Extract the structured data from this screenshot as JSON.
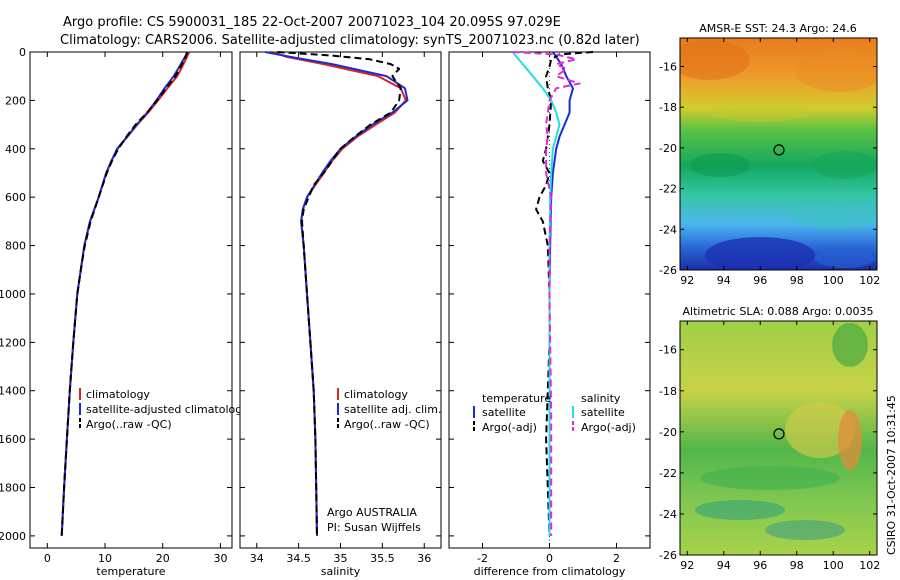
{
  "header": {
    "line1": "Argo profile: CS 5900031_185 22-Oct-2007 20071023_104 20.095S 97.029E",
    "line2": "Climatology: CARS2006. Satellite-adjusted climatology: synTS_20071023.nc (0.82d later)"
  },
  "credit": "CSIRO 31-Oct-2007 10:31:45",
  "colors": {
    "climatology": "#dd2222",
    "satellite": "#1a2bd6",
    "argo": "#000000",
    "salinity_satellite": "#22dde6",
    "salinity_argo": "#e22ad8"
  },
  "chart_data": [
    {
      "type": "line",
      "xlabel": "temperature",
      "ylabel": "",
      "xlim": [
        -3,
        32
      ],
      "ylim": [
        2050,
        0
      ],
      "xticks": [
        "0",
        "10",
        "20",
        "30"
      ],
      "yticks": [
        "0",
        "200",
        "400",
        "600",
        "800",
        "1000",
        "1200",
        "1400",
        "1600",
        "1800",
        "2000"
      ],
      "legend": {
        "placement": "lower-middle",
        "entries": [
          "climatology",
          "satellite-adjusted climatology",
          "Argo(..raw -QC)"
        ]
      },
      "series": [
        {
          "name": "climatology",
          "depth": [
            0,
            30,
            60,
            100,
            150,
            200,
            250,
            300,
            350,
            400,
            450,
            500,
            600,
            700,
            800,
            900,
            1000,
            1200,
            1400,
            1600,
            1800,
            2000
          ],
          "values": [
            24.6,
            24.0,
            23.4,
            22.5,
            20.8,
            19.2,
            17.5,
            15.6,
            13.9,
            12.2,
            11.1,
            10.2,
            8.9,
            7.4,
            6.4,
            5.8,
            5.2,
            4.5,
            3.9,
            3.4,
            2.9,
            2.5
          ]
        },
        {
          "name": "satellite-adjusted climatology",
          "depth": [
            0,
            30,
            60,
            100,
            150,
            200,
            250,
            300,
            350,
            400,
            450,
            500,
            600,
            700,
            800,
            900,
            1000,
            1200,
            1400,
            1600,
            1800,
            2000
          ],
          "values": [
            24.4,
            23.6,
            22.9,
            21.9,
            20.3,
            18.9,
            17.3,
            15.5,
            13.8,
            12.1,
            11.1,
            10.2,
            8.9,
            7.4,
            6.4,
            5.8,
            5.2,
            4.5,
            3.9,
            3.4,
            2.9,
            2.5
          ]
        },
        {
          "name": "Argo(..raw -QC)",
          "depth": [
            0,
            30,
            60,
            100,
            150,
            200,
            250,
            300,
            350,
            400,
            450,
            500,
            600,
            700,
            800,
            900,
            1000,
            1200,
            1400,
            1600,
            1800,
            2000
          ],
          "values": [
            24.2,
            23.8,
            23.1,
            22.2,
            20.6,
            19.0,
            17.3,
            15.3,
            13.7,
            12.3,
            11.2,
            10.3,
            8.9,
            7.5,
            6.5,
            5.8,
            5.2,
            4.5,
            3.9,
            3.4,
            2.9,
            2.5
          ]
        }
      ]
    },
    {
      "type": "line",
      "xlabel": "salinity",
      "ylabel": "",
      "xlim": [
        33.8,
        36.2
      ],
      "ylim": [
        2050,
        0
      ],
      "xticks": [
        "34",
        "34.5",
        "35",
        "35.5",
        "36"
      ],
      "legend": {
        "placement": "lower-middle",
        "entries": [
          "climatology",
          "satellite adj. clim.",
          "Argo(..raw -QC)"
        ]
      },
      "annotation": [
        "Argo AUSTRALIA",
        "PI: Susan Wijffels"
      ],
      "series": [
        {
          "name": "climatology",
          "depth": [
            0,
            20,
            50,
            100,
            150,
            200,
            250,
            300,
            350,
            400,
            450,
            500,
            550,
            600,
            650,
            700,
            800,
            1000,
            1200,
            1400,
            1600,
            1800,
            2000
          ],
          "values": [
            34.2,
            34.35,
            34.8,
            35.45,
            35.72,
            35.78,
            35.65,
            35.42,
            35.2,
            35.02,
            34.9,
            34.8,
            34.7,
            34.6,
            34.55,
            34.53,
            34.56,
            34.6,
            34.64,
            34.68,
            34.7,
            34.71,
            34.72
          ]
        },
        {
          "name": "satellite adj. clim.",
          "depth": [
            0,
            20,
            50,
            100,
            150,
            200,
            250,
            300,
            350,
            400,
            450,
            500,
            550,
            600,
            650,
            700,
            800,
            1000,
            1200,
            1400,
            1600,
            1800,
            2000
          ],
          "values": [
            34.1,
            34.4,
            34.9,
            35.55,
            35.77,
            35.8,
            35.62,
            35.38,
            35.18,
            35.0,
            34.88,
            34.78,
            34.69,
            34.6,
            34.55,
            34.53,
            34.56,
            34.6,
            34.64,
            34.68,
            34.7,
            34.71,
            34.72
          ]
        },
        {
          "name": "Argo(..raw -QC)",
          "depth": [
            0,
            15,
            30,
            50,
            70,
            100,
            150,
            200,
            250,
            300,
            350,
            400,
            450,
            500,
            550,
            600,
            650,
            700,
            800,
            1000,
            1200,
            1400,
            1600,
            1800,
            2000
          ],
          "values": [
            34.25,
            34.9,
            35.35,
            35.6,
            35.7,
            35.62,
            35.72,
            35.7,
            35.6,
            35.36,
            35.17,
            35.0,
            34.9,
            34.8,
            34.68,
            34.62,
            34.56,
            34.54,
            34.56,
            34.6,
            34.64,
            34.68,
            34.7,
            34.71,
            34.72
          ]
        }
      ]
    },
    {
      "type": "line",
      "xlabel": "difference from climatology",
      "ylabel": "",
      "xlim": [
        -3,
        3
      ],
      "ylim": [
        2050,
        0
      ],
      "xticks": [
        "-2",
        "0",
        "2"
      ],
      "legend": {
        "placement": "lower-middle",
        "groups": [
          {
            "title": "temperature",
            "entries": [
              "satellite",
              "Argo(-adj)"
            ]
          },
          {
            "title": "salinity",
            "entries": [
              "satellite",
              "Argo(-adj)"
            ]
          }
        ]
      },
      "series": [
        {
          "name": "temperature satellite",
          "depth": [
            0,
            50,
            100,
            150,
            200,
            250,
            300,
            350,
            400,
            500,
            600,
            800,
            1000,
            1500,
            2000
          ],
          "values": [
            0.1,
            0.35,
            0.5,
            0.7,
            0.6,
            0.6,
            0.45,
            0.3,
            0.2,
            0.1,
            0.05,
            0.02,
            0.0,
            0.0,
            0.0
          ]
        },
        {
          "name": "temperature Argo(-adj)",
          "depth": [
            0,
            10,
            30,
            60,
            100,
            150,
            200,
            300,
            400,
            450,
            500,
            550,
            600,
            650,
            700,
            800,
            1000,
            1200,
            1400,
            1600,
            1800,
            2000
          ],
          "values": [
            1.3,
            0.3,
            0.05,
            0.0,
            -0.1,
            -0.05,
            0.05,
            0.0,
            -0.1,
            -0.2,
            0.0,
            -0.1,
            -0.3,
            -0.4,
            -0.2,
            -0.05,
            0.0,
            0.0,
            -0.05,
            -0.1,
            -0.05,
            0.0
          ]
        },
        {
          "name": "salinity satellite",
          "depth": [
            0,
            50,
            100,
            150,
            200,
            250,
            300,
            350,
            400,
            500,
            600,
            800,
            1000,
            1500,
            2000
          ],
          "values": [
            -1.1,
            -0.8,
            -0.5,
            -0.2,
            0.05,
            0.2,
            0.3,
            0.2,
            0.1,
            0.05,
            0.02,
            0.0,
            0.0,
            0.0,
            0.0
          ]
        },
        {
          "name": "salinity Argo(-adj)",
          "depth": [
            0,
            10,
            30,
            50,
            70,
            100,
            130,
            150,
            200,
            250,
            300,
            350,
            400,
            500,
            600,
            800,
            1000,
            1500,
            2000
          ],
          "values": [
            -1.1,
            0.2,
            0.8,
            0.2,
            0.5,
            0.2,
            0.9,
            0.2,
            0.0,
            -0.05,
            -0.1,
            -0.05,
            -0.1,
            -0.1,
            0.05,
            0.0,
            0.0,
            0.05,
            0.05
          ]
        }
      ]
    },
    {
      "type": "heatmap",
      "title": "AMSR-E SST: 24.3 Argo: 24.6",
      "xlim": [
        91.6,
        102.4
      ],
      "ylim": [
        -26,
        -14.6
      ],
      "xticks": [
        "92",
        "94",
        "96",
        "98",
        "100",
        "102"
      ],
      "yticks": [
        "-16",
        "-18",
        "-20",
        "-22",
        "-24",
        "-26"
      ],
      "marker": {
        "lon": 97.03,
        "lat": -20.1
      }
    },
    {
      "type": "heatmap",
      "title": "Altimetric SLA: 0.088 Argo: 0.0035",
      "xlim": [
        91.6,
        102.4
      ],
      "ylim": [
        -26,
        -14.6
      ],
      "xticks": [
        "92",
        "94",
        "96",
        "98",
        "100",
        "102"
      ],
      "yticks": [
        "-16",
        "-18",
        "-20",
        "-22",
        "-24",
        "-26"
      ],
      "marker": {
        "lon": 97.03,
        "lat": -20.1
      }
    }
  ]
}
